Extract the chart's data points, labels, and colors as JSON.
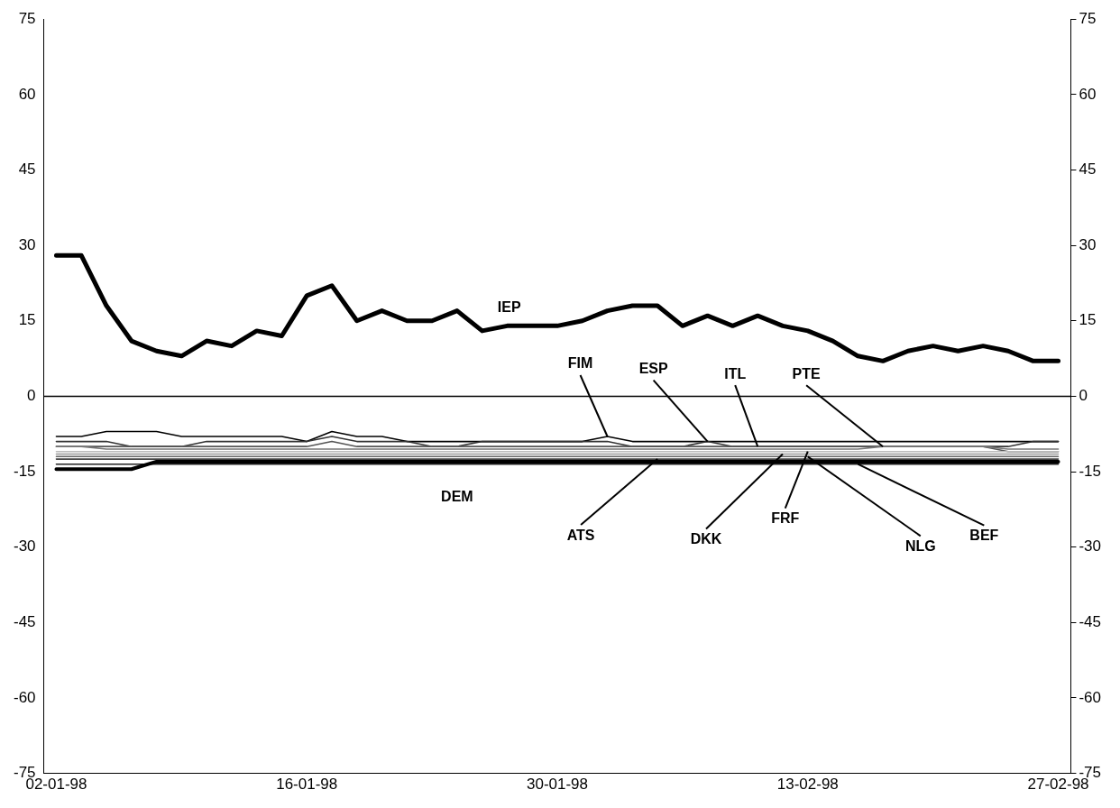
{
  "chart_data": {
    "type": "line",
    "categories": [
      "02-01-98",
      null,
      null,
      null,
      null,
      null,
      null,
      null,
      null,
      null,
      "16-01-98",
      null,
      null,
      null,
      null,
      null,
      null,
      null,
      null,
      null,
      "30-01-98",
      null,
      null,
      null,
      null,
      null,
      null,
      null,
      null,
      null,
      "13-02-98",
      null,
      null,
      null,
      null,
      null,
      null,
      null,
      null,
      null,
      "27-02-98"
    ],
    "series": [
      {
        "name": "IEP",
        "color": "#000000",
        "values": [
          28,
          28,
          18,
          11,
          9,
          8,
          11,
          10,
          13,
          12,
          20,
          22,
          15,
          17,
          15,
          15,
          17,
          13,
          14,
          14,
          14,
          15,
          17,
          18,
          18,
          14,
          16,
          14,
          16,
          14,
          13,
          11,
          8,
          7,
          9,
          10,
          9,
          10,
          9,
          7,
          7
        ]
      },
      {
        "name": "FIM",
        "color": "#000000",
        "values": [
          -8,
          -8,
          -7,
          -7,
          -7,
          -8,
          -8,
          -8,
          -8,
          -8,
          -9,
          -7,
          -8,
          -8,
          -9,
          -9,
          -9,
          -9,
          -9,
          -9,
          -9,
          -9,
          -8,
          -9,
          -9,
          -9,
          -9,
          -9,
          -9,
          -9,
          -9,
          -9,
          -9,
          -9,
          -9,
          -9,
          -9,
          -9,
          -9,
          -9,
          -9
        ]
      },
      {
        "name": "ESP",
        "color": "#333333",
        "values": [
          -9,
          -9,
          -9,
          -10,
          -10,
          -10,
          -9,
          -9,
          -9,
          -9,
          -9,
          -8,
          -9,
          -9,
          -9,
          -10,
          -10,
          -9,
          -9,
          -9,
          -9,
          -9,
          -9,
          -10,
          -10,
          -10,
          -9,
          -10,
          -10,
          -10,
          -10,
          -10,
          -10,
          -10,
          -10,
          -10,
          -10,
          -10,
          -10,
          -9,
          -9
        ]
      },
      {
        "name": "ITL",
        "color": "#555555",
        "values": [
          -10,
          -10,
          -10,
          -10,
          -10,
          -10,
          -10,
          -10,
          -10,
          -10,
          -10,
          -9,
          -10,
          -10,
          -10,
          -10,
          -10,
          -10,
          -10,
          -10,
          -10,
          -10,
          -10,
          -10,
          -10,
          -10,
          -10,
          -10,
          -10,
          -10,
          -10,
          -10,
          -10,
          -10,
          -10,
          -10,
          -10,
          -10,
          -11,
          -11,
          -11
        ]
      },
      {
        "name": "PTE",
        "color": "#777777",
        "values": [
          -10,
          -10,
          -10.5,
          -10.5,
          -10.5,
          -10.5,
          -10.5,
          -10.5,
          -10.5,
          -10.5,
          -10.5,
          -10.5,
          -10.5,
          -10.5,
          -10.5,
          -10.5,
          -10.5,
          -10.5,
          -10.5,
          -10.5,
          -10.5,
          -10.5,
          -10.5,
          -10.5,
          -10.5,
          -10.5,
          -10.5,
          -10.5,
          -10.5,
          -10.5,
          -10.5,
          -10.5,
          -10.5,
          -10,
          -10,
          -10,
          -10,
          -10,
          -10.5,
          -10.5,
          -10.5
        ]
      },
      {
        "name": "ATS",
        "color": "#444444",
        "values": [
          -12.5,
          -12.5,
          -12.5,
          -12.5,
          -12.5,
          -12.5,
          -12.5,
          -12.5,
          -12.5,
          -12.5,
          -12.5,
          -12.5,
          -12.5,
          -12.5,
          -12.5,
          -12.5,
          -12.5,
          -12.5,
          -12.5,
          -12.5,
          -12.5,
          -12.5,
          -12.5,
          -12.5,
          -12.5,
          -12.5,
          -12.5,
          -12.5,
          -12.5,
          -12.5,
          -12.5,
          -12.5,
          -12.5,
          -12.5,
          -12.5,
          -12.5,
          -12.5,
          -12.5,
          -12.5,
          -12.5,
          -12.5
        ]
      },
      {
        "name": "DKK",
        "color": "#999999",
        "values": [
          -11.5,
          -11.5,
          -11.5,
          -11.5,
          -11.5,
          -11.5,
          -11.5,
          -11.5,
          -11.5,
          -11.5,
          -11.5,
          -11.5,
          -11.5,
          -11.5,
          -11.5,
          -11.5,
          -11.5,
          -11.5,
          -11.5,
          -11.5,
          -11.5,
          -11.5,
          -11.5,
          -11.5,
          -11.5,
          -11.5,
          -11.5,
          -11.5,
          -11.5,
          -11.5,
          -11.5,
          -11.5,
          -11.5,
          -11.5,
          -11.5,
          -11.5,
          -11.5,
          -11.5,
          -11.5,
          -11.5,
          -11.5
        ]
      },
      {
        "name": "FRF",
        "color": "#bbbbbb",
        "values": [
          -11,
          -11,
          -11,
          -11,
          -11,
          -11,
          -11,
          -11,
          -11,
          -11,
          -11,
          -11,
          -11,
          -11,
          -11,
          -11,
          -11,
          -11,
          -11,
          -11,
          -11,
          -11,
          -11,
          -11,
          -11,
          -11,
          -11,
          -11,
          -11,
          -11,
          -11,
          -11,
          -11,
          -11,
          -11,
          -11,
          -11,
          -11,
          -11,
          -11,
          -11
        ]
      },
      {
        "name": "NLG",
        "color": "#666666",
        "values": [
          -12,
          -12,
          -12,
          -12,
          -12,
          -12,
          -12,
          -12,
          -12,
          -12,
          -12,
          -12,
          -12,
          -12,
          -12,
          -12,
          -12,
          -12,
          -12,
          -12,
          -12,
          -12,
          -12,
          -12,
          -12,
          -12,
          -12,
          -12,
          -12,
          -12,
          -12,
          -12,
          -12,
          -12,
          -12,
          -12,
          -12,
          -12,
          -12,
          -12,
          -12
        ]
      },
      {
        "name": "BEF",
        "color": "#222222",
        "values": [
          -13.5,
          -13.5,
          -13.5,
          -13.5,
          -13.5,
          -13.5,
          -13.5,
          -13.5,
          -13.5,
          -13.5,
          -13.5,
          -13.5,
          -13.5,
          -13.5,
          -13.5,
          -13.5,
          -13.5,
          -13.5,
          -13.5,
          -13.5,
          -13.5,
          -13.5,
          -13.5,
          -13.5,
          -13.5,
          -13.5,
          -13.5,
          -13.5,
          -13.5,
          -13.5,
          -13.5,
          -13.5,
          -13.5,
          -13.5,
          -13.5,
          -13.5,
          -13.5,
          -13.5,
          -13.5,
          -13.5,
          -13.5
        ]
      },
      {
        "name": "DEM",
        "color": "#000000",
        "values": [
          -14.5,
          -14.5,
          -14.5,
          -14.5,
          -13,
          -13,
          -13,
          -13,
          -13,
          -13,
          -13,
          -13,
          -13,
          -13,
          -13,
          -13,
          -13,
          -13,
          -13,
          -13,
          -13,
          -13,
          -13,
          -13,
          -13,
          -13,
          -13,
          -13,
          -13,
          -13,
          -13,
          -13,
          -13,
          -13,
          -13,
          -13,
          -13,
          -13,
          -13,
          -13,
          -13
        ]
      }
    ],
    "ylim": [
      -75,
      75
    ],
    "yticks": [
      -75,
      -60,
      -45,
      -30,
      -15,
      0,
      15,
      30,
      45,
      60,
      75
    ],
    "y2lim": [
      -75,
      75
    ],
    "y2ticks": [
      -75,
      -60,
      -45,
      -30,
      -15,
      0,
      15,
      30,
      45,
      60,
      75
    ],
    "ref_lines": [
      {
        "axis": "y",
        "value": 0
      }
    ],
    "grid": false,
    "legend": false,
    "marker": "none",
    "line_style": "solid"
  }
}
